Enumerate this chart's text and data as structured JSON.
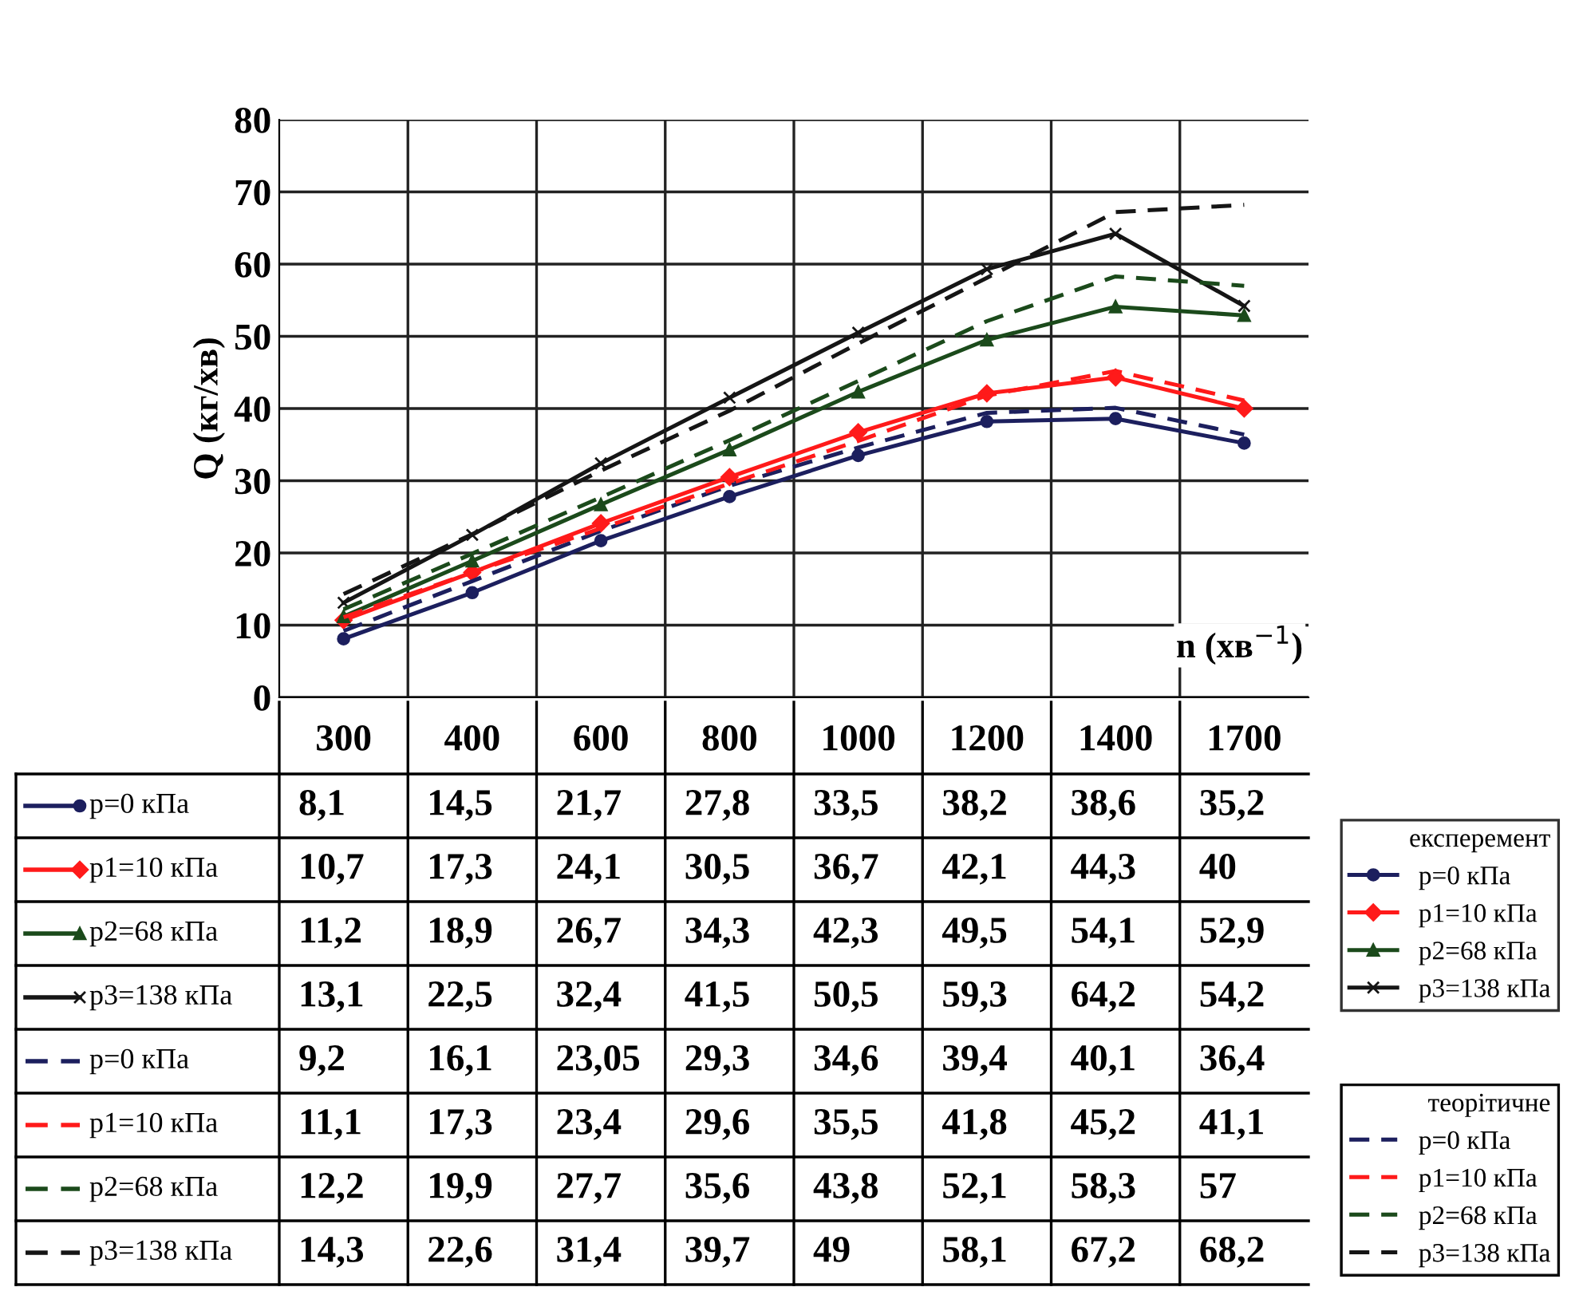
{
  "chart_data": {
    "type": "line",
    "ylabel": "Q (кг/хв)",
    "xlabel": "n (хв$^{−1}$)",
    "categories": [
      "300",
      "400",
      "600",
      "800",
      "1000",
      "1200",
      "1400",
      "1700"
    ],
    "ylim": [
      0,
      80
    ],
    "yticks": [
      0,
      10,
      20,
      30,
      40,
      50,
      60,
      70,
      80
    ],
    "grid": true,
    "tick_labels": "y",
    "legend": "bottom left",
    "annotations": [
      "експеремент",
      "теорітичне"
    ],
    "series": [
      {
        "name": "p=0 кПа",
        "color": "#1c1f5e",
        "marker": "circle",
        "line_style": "solid",
        "values": [
          8.1,
          14.5,
          21.7,
          27.8,
          33.5,
          38.2,
          38.6,
          35.2
        ],
        "value_labels": [
          "8,1",
          "14,5",
          "21,7",
          "27,8",
          "33,5",
          "38,2",
          "38,6",
          "35,2"
        ]
      },
      {
        "name": "p1=10 кПа",
        "color": "#ff1a1a",
        "marker": "diamond",
        "line_style": "solid",
        "values": [
          10.7,
          17.3,
          24.1,
          30.5,
          36.7,
          42.1,
          44.3,
          40
        ],
        "value_labels": [
          "10,7",
          "17,3",
          "24,1",
          "30,5",
          "36,7",
          "42,1",
          "44,3",
          "40"
        ]
      },
      {
        "name": "p2=68 кПа",
        "color": "#1b4a1b",
        "marker": "triangle",
        "line_style": "solid",
        "values": [
          11.2,
          18.9,
          26.7,
          34.3,
          42.3,
          49.5,
          54.1,
          52.9
        ],
        "value_labels": [
          "11,2",
          "18,9",
          "26,7",
          "34,3",
          "42,3",
          "49,5",
          "54,1",
          "52,9"
        ]
      },
      {
        "name": "p3=138 кПа",
        "color": "#151515",
        "marker": "cross",
        "line_style": "solid",
        "values": [
          13.1,
          22.5,
          32.4,
          41.5,
          50.5,
          59.3,
          64.2,
          54.2
        ],
        "value_labels": [
          "13,1",
          "22,5",
          "32,4",
          "41,5",
          "50,5",
          "59,3",
          "64,2",
          "54,2"
        ]
      },
      {
        "name": "p=0 кПа",
        "color": "#1c1f5e",
        "marker": "none",
        "line_style": "dashed",
        "values": [
          9.2,
          16.1,
          23.05,
          29.3,
          34.6,
          39.4,
          40.1,
          36.4
        ],
        "value_labels": [
          "9,2",
          "16,1",
          "23,05",
          "29,3",
          "34,6",
          "39,4",
          "40,1",
          "36,4"
        ]
      },
      {
        "name": "p1=10 кПа",
        "color": "#ff1a1a",
        "marker": "none",
        "line_style": "dashed",
        "values": [
          11.1,
          17.3,
          23.4,
          29.6,
          35.5,
          41.8,
          45.2,
          41.1
        ],
        "value_labels": [
          "11,1",
          "17,3",
          "23,4",
          "29,6",
          "35,5",
          "41,8",
          "45,2",
          "41,1"
        ]
      },
      {
        "name": "p2=68 кПа",
        "color": "#1b4a1b",
        "marker": "none",
        "line_style": "dashed",
        "values": [
          12.2,
          19.9,
          27.7,
          35.6,
          43.8,
          52.1,
          58.3,
          57
        ],
        "value_labels": [
          "12,2",
          "19,9",
          "27,7",
          "35,6",
          "43,8",
          "52,1",
          "58,3",
          "57"
        ]
      },
      {
        "name": "p3=138 кПа",
        "color": "#151515",
        "marker": "none",
        "line_style": "dashed",
        "values": [
          14.3,
          22.6,
          31.4,
          39.7,
          49,
          58.1,
          67.2,
          68.2
        ],
        "value_labels": [
          "14,3",
          "22,6",
          "31,4",
          "39,7",
          "49",
          "58,1",
          "67,2",
          "68,2"
        ]
      }
    ]
  }
}
